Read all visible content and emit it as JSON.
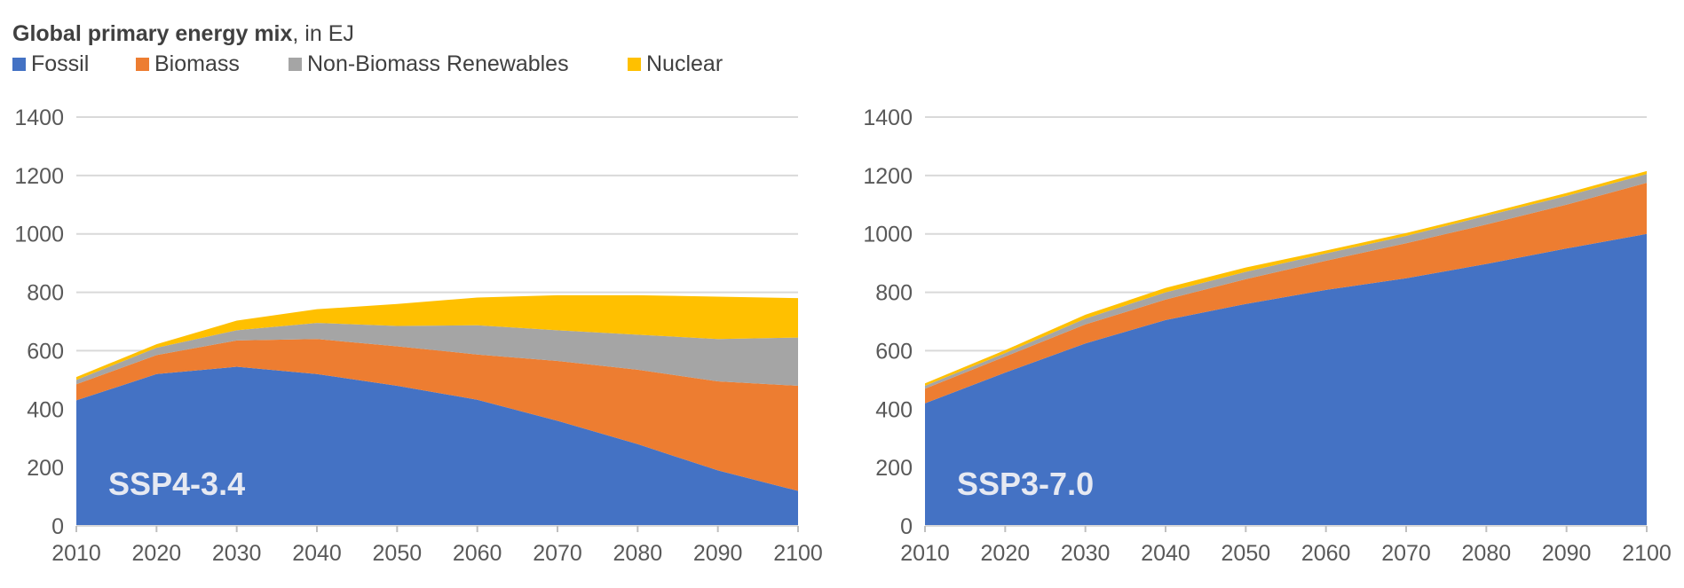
{
  "title": {
    "bold": "Global primary energy mix",
    "rest": ", in EJ"
  },
  "legend": [
    {
      "label": "Fossil",
      "color": "#4472C4"
    },
    {
      "label": "Biomass",
      "color": "#ED7D31"
    },
    {
      "label": "Non-Biomass Renewables",
      "color": "#A5A5A5"
    },
    {
      "label": "Nuclear",
      "color": "#FFC000"
    }
  ],
  "chart_data": [
    {
      "type": "area",
      "stacked": true,
      "scenario_label": "SSP4-3.4",
      "x": [
        2010,
        2020,
        2030,
        2040,
        2050,
        2060,
        2070,
        2080,
        2090,
        2100
      ],
      "ylim": [
        0,
        1400
      ],
      "yticks": [
        0,
        200,
        400,
        600,
        800,
        1000,
        1200,
        1400
      ],
      "grid": true,
      "series": [
        {
          "name": "Fossil",
          "values": [
            430,
            520,
            545,
            520,
            480,
            432,
            360,
            280,
            190,
            120
          ]
        },
        {
          "name": "Biomass",
          "values": [
            55,
            65,
            90,
            120,
            135,
            155,
            205,
            255,
            305,
            360
          ]
        },
        {
          "name": "Non-Biomass Renewables",
          "values": [
            15,
            25,
            35,
            55,
            70,
            100,
            105,
            120,
            145,
            165
          ]
        },
        {
          "name": "Nuclear",
          "values": [
            10,
            12,
            33,
            47,
            75,
            95,
            120,
            135,
            145,
            135
          ]
        }
      ]
    },
    {
      "type": "area",
      "stacked": true,
      "scenario_label": "SSP3-7.0",
      "x": [
        2010,
        2020,
        2030,
        2040,
        2050,
        2060,
        2070,
        2080,
        2090,
        2100
      ],
      "ylim": [
        0,
        1400
      ],
      "yticks": [
        0,
        200,
        400,
        600,
        800,
        1000,
        1200,
        1400
      ],
      "grid": true,
      "series": [
        {
          "name": "Fossil",
          "values": [
            420,
            525,
            625,
            705,
            760,
            808,
            848,
            897,
            950,
            1000
          ]
        },
        {
          "name": "Biomass",
          "values": [
            50,
            55,
            65,
            70,
            85,
            100,
            120,
            135,
            150,
            175
          ]
        },
        {
          "name": "Non-Biomass Renewables",
          "values": [
            10,
            12,
            20,
            25,
            25,
            25,
            25,
            30,
            30,
            30
          ]
        },
        {
          "name": "Nuclear",
          "values": [
            8,
            10,
            13,
            15,
            15,
            10,
            10,
            8,
            10,
            10
          ]
        }
      ]
    }
  ]
}
